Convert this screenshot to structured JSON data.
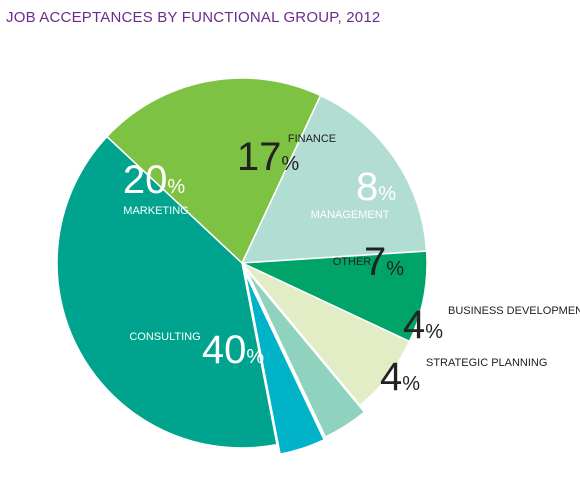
{
  "chart_data": {
    "type": "pie",
    "title": "JOB ACCEPTANCES BY FUNCTIONAL GROUP, 2012",
    "unit": "%",
    "slices": [
      {
        "label": "FINANCE",
        "value": 17,
        "color": "#b2ddd3",
        "text_color": "#222222"
      },
      {
        "label": "MANAGEMENT",
        "value": 8,
        "color": "#00a368",
        "text_color": "#ffffff"
      },
      {
        "label": "OTHER",
        "value": 7,
        "color": "#e2edc6",
        "text_color": "#222222"
      },
      {
        "label": "BUSINESS DEVELOPMENT",
        "value": 4,
        "color": "#8fd2bd",
        "text_color": "#222222"
      },
      {
        "label": "STRATEGIC PLANNING",
        "value": 4,
        "color": "#00b3c9",
        "text_color": "#222222"
      },
      {
        "label": "CONSULTING",
        "value": 40,
        "color": "#00a48e",
        "text_color": "#ffffff"
      },
      {
        "label": "MARKETING",
        "value": 20,
        "color": "#7dc242",
        "text_color": "#ffffff"
      }
    ]
  }
}
